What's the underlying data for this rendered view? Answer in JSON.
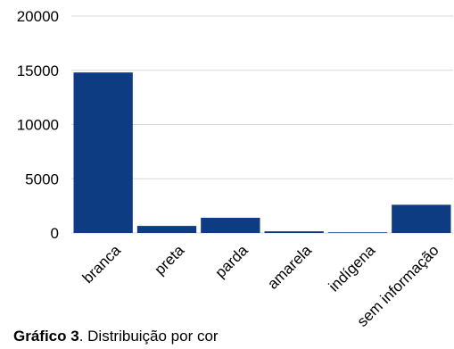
{
  "chart_data": {
    "type": "bar",
    "categories": [
      "branca",
      "preta",
      "parda",
      "amarela",
      "indígena",
      "sem informação"
    ],
    "values": [
      14800,
      650,
      1400,
      150,
      60,
      2600
    ],
    "ylim": [
      0,
      20000
    ],
    "yticks": [
      "0",
      "5000",
      "10000",
      "15000",
      "20000"
    ],
    "grid": true,
    "bar_color": "#0e3c82",
    "grid_color": "#d9d9d9"
  },
  "caption": {
    "label": "Gráfico 3",
    "text": ". Distribuição por cor"
  }
}
